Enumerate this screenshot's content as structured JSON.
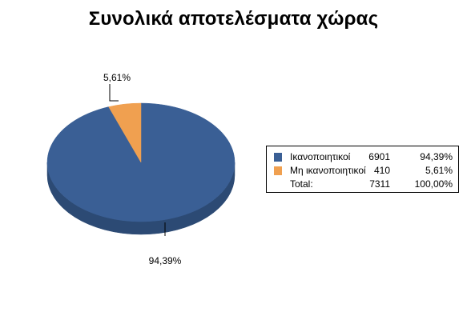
{
  "chart_data": {
    "type": "pie",
    "title": "Συνολικά αποτελέσματα χώρας",
    "three_d": true,
    "slices": [
      {
        "name": "Ικανοποιητικοί",
        "value": 6901,
        "percent_label": "94,39%",
        "color": "#3A5F95",
        "side_color": "#2C4A74"
      },
      {
        "name": "Μη ικανοποιητικοί",
        "value": 410,
        "percent_label": "5,61%",
        "color": "#F0A050",
        "side_color": "#C07A30"
      }
    ],
    "legend": {
      "placement": "right",
      "total_label": "Total:",
      "total_value": "7311",
      "total_percent": "100,00%"
    }
  }
}
